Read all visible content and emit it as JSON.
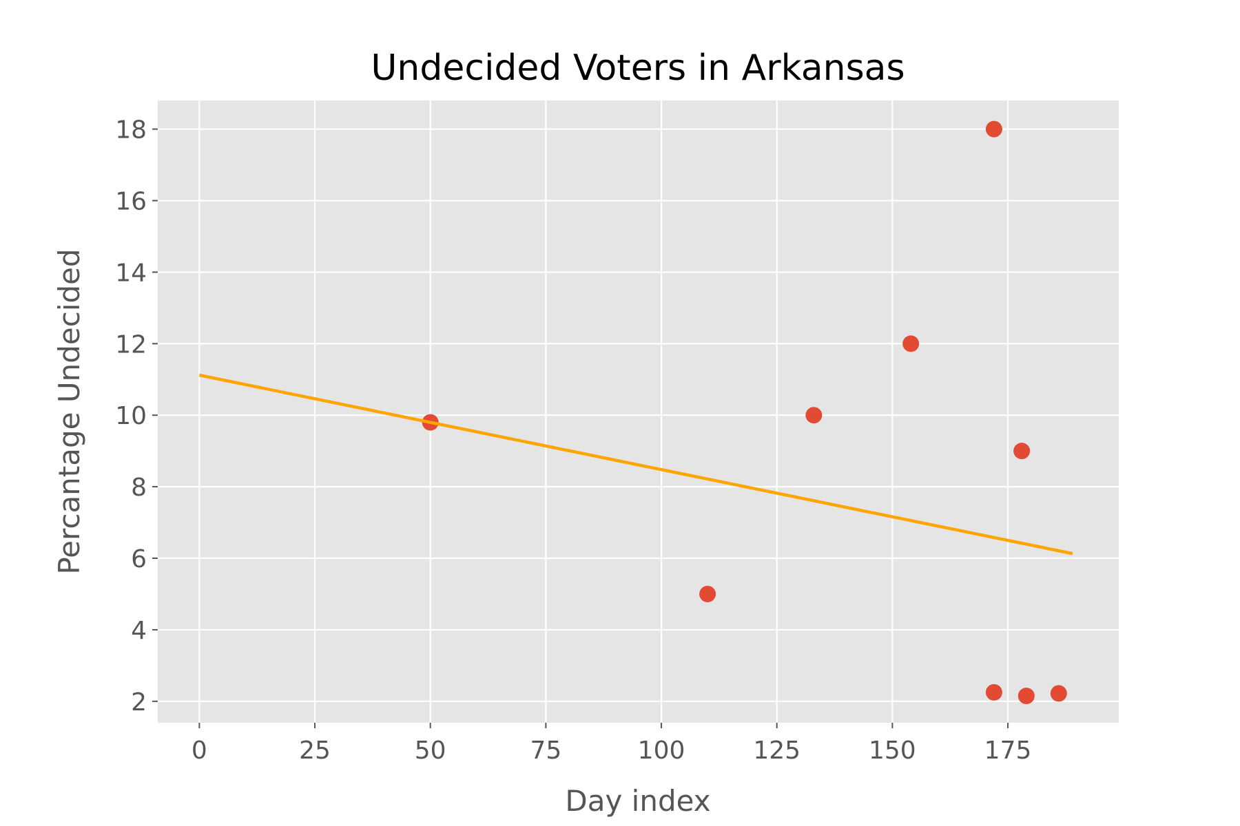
{
  "chart_data": {
    "type": "scatter",
    "title": "Undecided Voters in Arkansas",
    "xlabel": "Day index",
    "ylabel": "Percantage Undecided",
    "xlim": [
      -9,
      199
    ],
    "ylim": [
      1.4,
      18.8
    ],
    "xticks": [
      0,
      25,
      50,
      75,
      100,
      125,
      150,
      175
    ],
    "yticks": [
      2,
      4,
      6,
      8,
      10,
      12,
      14,
      16,
      18
    ],
    "grid": true,
    "legend": "none",
    "series": [
      {
        "type": "scatter",
        "color": "#E24A33",
        "points": [
          {
            "x": 50,
            "y": 9.8
          },
          {
            "x": 110,
            "y": 5
          },
          {
            "x": 133,
            "y": 10
          },
          {
            "x": 154,
            "y": 12
          },
          {
            "x": 172,
            "y": 18
          },
          {
            "x": 178,
            "y": 9
          },
          {
            "x": 172,
            "y": 2.25
          },
          {
            "x": 179,
            "y": 2.15
          },
          {
            "x": 186,
            "y": 2.22
          }
        ]
      },
      {
        "type": "line",
        "color": "#FFA500",
        "points": [
          {
            "x": 0,
            "y": 11.12
          },
          {
            "x": 189,
            "y": 6.13
          }
        ]
      }
    ],
    "background": "#E5E5E5"
  }
}
